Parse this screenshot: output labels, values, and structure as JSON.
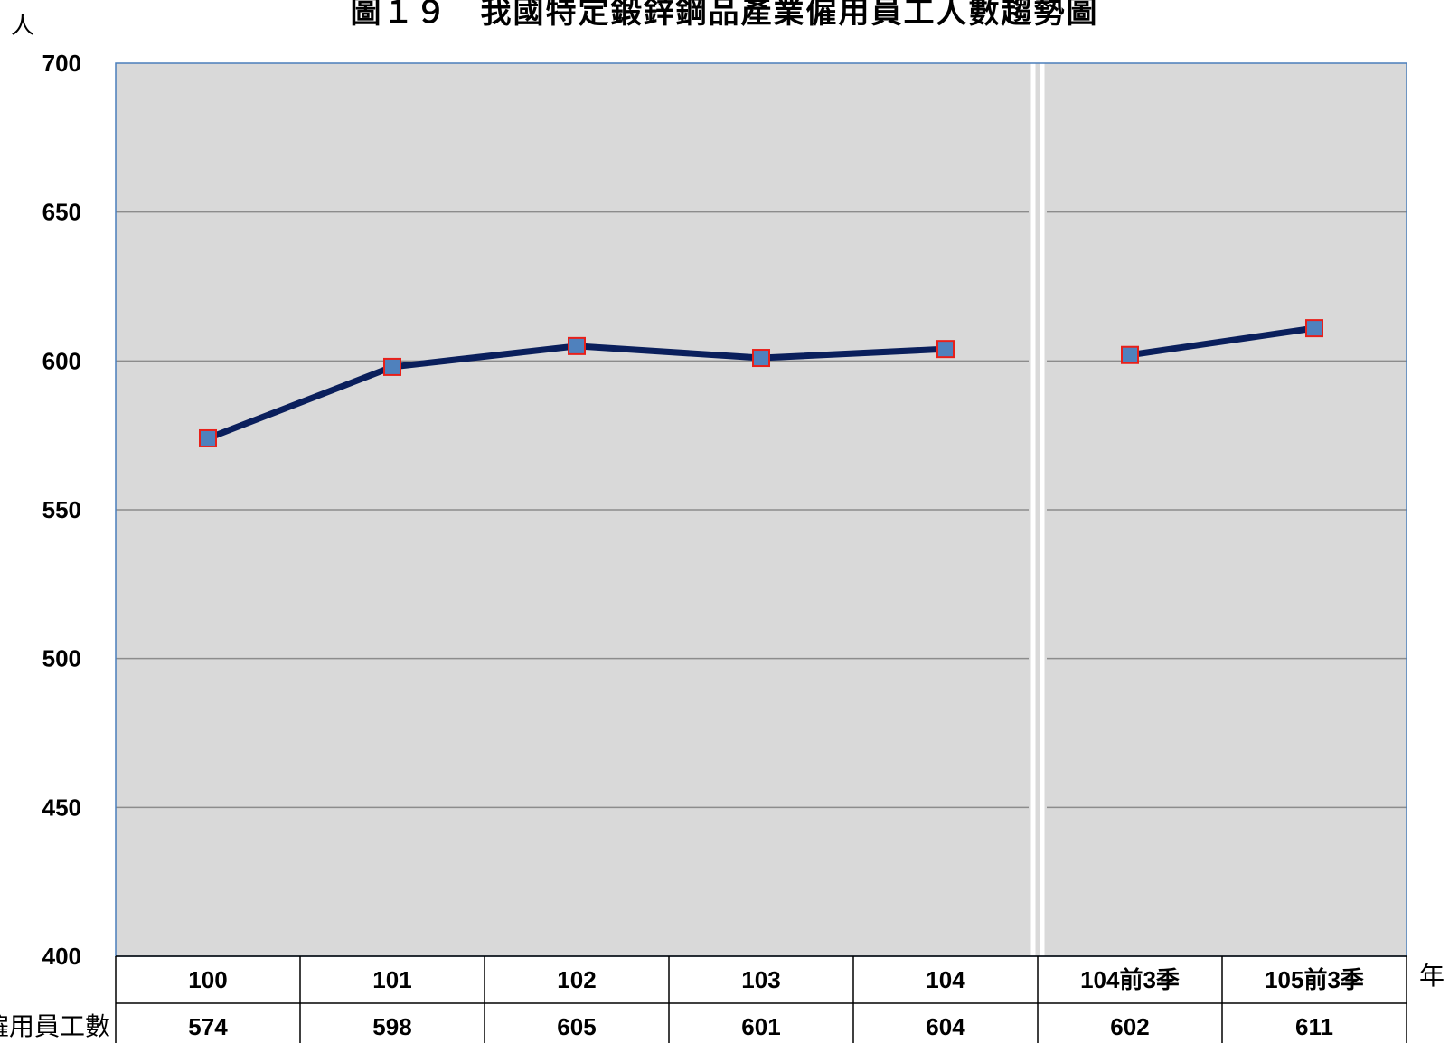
{
  "chart_data": {
    "type": "line",
    "title": "圖１９　我國特定鍛鋅鋼品產業僱用員工人數趨勢圖",
    "y_unit_label": "人",
    "x_unit_label": "年",
    "ylim": [
      400,
      700
    ],
    "y_ticks": [
      "700",
      "650",
      "600",
      "550",
      "500",
      "450",
      "400"
    ],
    "categories": [
      "100",
      "101",
      "102",
      "103",
      "104",
      "104前3季",
      "105前3季"
    ],
    "series": [
      {
        "name": "僱用員工數",
        "values": [
          574,
          598,
          605,
          601,
          604,
          602,
          611
        ]
      }
    ],
    "segments": [
      [
        0,
        1,
        2,
        3,
        4
      ],
      [
        5,
        6
      ]
    ],
    "table_values": [
      "574",
      "598",
      "605",
      "601",
      "604",
      "602",
      "611"
    ],
    "grid": true,
    "legend": "none",
    "colors": {
      "plot_bg": "#d9d9d9",
      "gridline": "#8c8c8c",
      "line": "#0a1f5c",
      "marker_fill": "#4f81bd",
      "marker_stroke": "#e8201a",
      "border": "#4a7ebb",
      "break_line": "#ffffff"
    }
  }
}
